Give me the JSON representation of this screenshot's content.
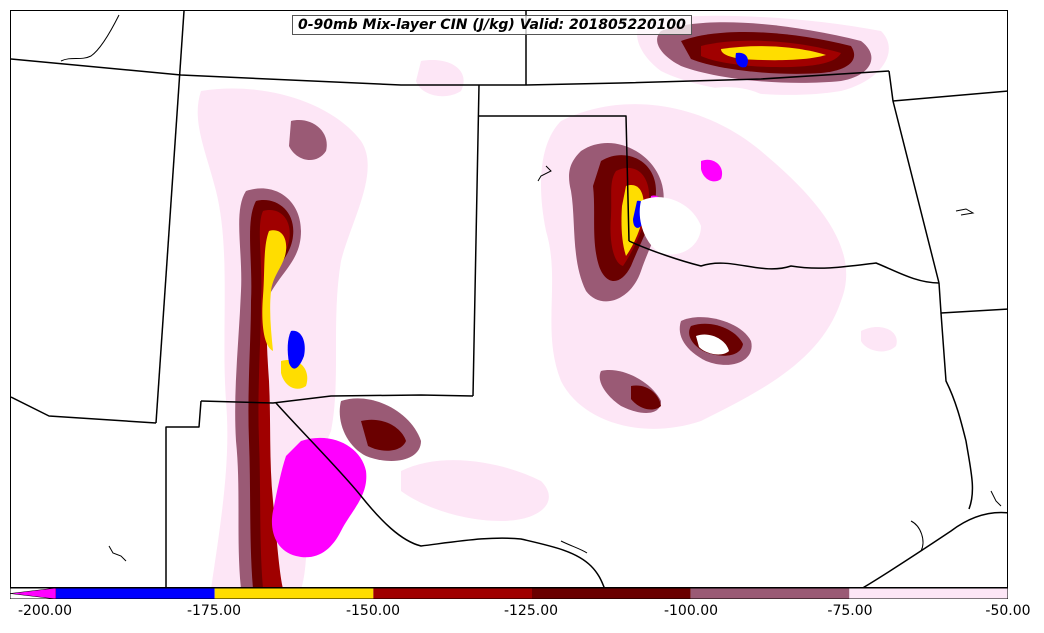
{
  "title": "0-90mb Mix-layer CIN (J/kg) Valid: 201805220100",
  "colorbar": {
    "ticks": [
      "-200.00",
      "-175.00",
      "-150.00",
      "-125.00",
      "-100.00",
      "-75.00",
      "-50.00"
    ],
    "bins": [
      {
        "from": -200,
        "to": -175,
        "color": "#0000ff"
      },
      {
        "from": -175,
        "to": -150,
        "color": "#ffdd00"
      },
      {
        "from": -150,
        "to": -125,
        "color": "#a00000"
      },
      {
        "from": -125,
        "to": -100,
        "color": "#6a0000"
      },
      {
        "from": -100,
        "to": -75,
        "color": "#9a5a75"
      },
      {
        "from": -75,
        "to": -50,
        "color": "#fde6f6"
      }
    ],
    "underflow_color": "#ff00ff"
  },
  "field_colors": {
    "magenta": "#ff00ff",
    "blue": "#0000ff",
    "yellow": "#ffdd00",
    "red": "#a00000",
    "darkred": "#6a0000",
    "mauve": "#9a5a75",
    "pink": "#fde6f6"
  }
}
